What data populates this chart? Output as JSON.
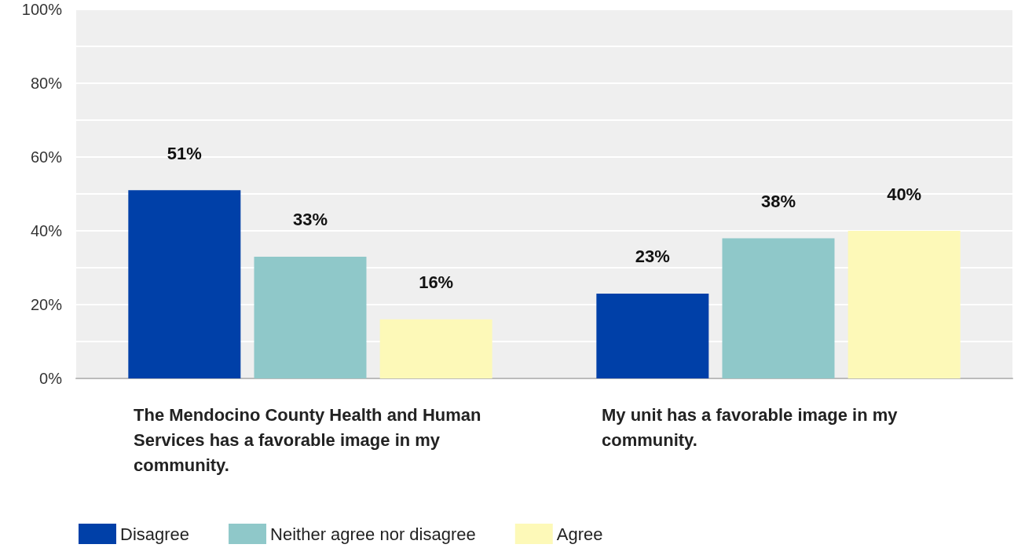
{
  "chart_data": {
    "type": "bar",
    "categories": [
      "The Mendocino County Health and Human Services has a favorable image in my community.",
      "My unit has a favorable image in my community."
    ],
    "series": [
      {
        "name": "Disagree",
        "color": "#0040a8",
        "values": [
          51,
          23
        ],
        "value_labels": [
          "51%",
          "23%"
        ]
      },
      {
        "name": "Neither agree nor disagree",
        "color": "#8fc8c9",
        "values": [
          33,
          38
        ],
        "value_labels": [
          "33%",
          "38%"
        ]
      },
      {
        "name": "Agree",
        "color": "#fdf9b8",
        "values": [
          16,
          40
        ],
        "value_labels": [
          "16%",
          "40%"
        ]
      }
    ],
    "ylim": [
      0,
      100
    ],
    "yticks": [
      {
        "value": 0,
        "label": "0%"
      },
      {
        "value": 10,
        "label": null
      },
      {
        "value": 20,
        "label": "20%"
      },
      {
        "value": 30,
        "label": null
      },
      {
        "value": 40,
        "label": "40%"
      },
      {
        "value": 50,
        "label": null
      },
      {
        "value": 60,
        "label": "60%"
      },
      {
        "value": 70,
        "label": null
      },
      {
        "value": 80,
        "label": "80%"
      },
      {
        "value": 90,
        "label": null
      },
      {
        "value": 100,
        "label": "100%"
      }
    ],
    "grid": "y",
    "legend": "bottom left"
  }
}
